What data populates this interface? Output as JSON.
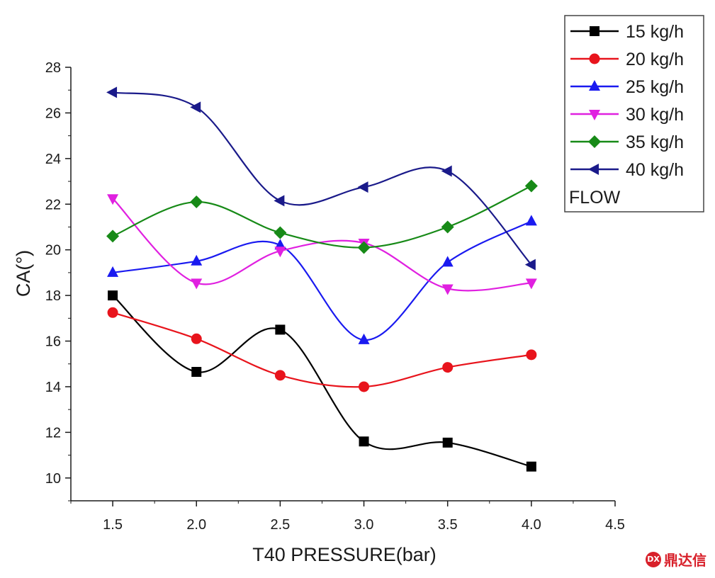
{
  "chart_data": {
    "type": "line",
    "xlabel": "T40 PRESSURE(bar)",
    "ylabel": "CA(°)",
    "xlim": [
      1.25,
      4.5
    ],
    "ylim": [
      9,
      28
    ],
    "xticks": [
      "1.5",
      "2.0",
      "2.5",
      "3.0",
      "3.5",
      "4.0",
      "4.5"
    ],
    "yticks": [
      "10",
      "12",
      "14",
      "16",
      "18",
      "20",
      "22",
      "24",
      "26",
      "28"
    ],
    "x": [
      1.5,
      2.0,
      2.5,
      3.0,
      3.5,
      4.0
    ],
    "legend_title": "FLOW",
    "legend_position": "top-right",
    "grid": false,
    "series": [
      {
        "name": "15 kg/h",
        "color": "#000000",
        "marker": "square",
        "values": [
          18.0,
          14.65,
          16.5,
          11.6,
          11.55,
          10.5
        ]
      },
      {
        "name": "20 kg/h",
        "color": "#e8141c",
        "marker": "circle",
        "values": [
          17.25,
          16.1,
          14.5,
          14.0,
          14.85,
          15.4
        ]
      },
      {
        "name": "25 kg/h",
        "color": "#1a1af0",
        "marker": "triangle-up",
        "values": [
          19.0,
          19.5,
          20.2,
          16.05,
          19.45,
          21.25
        ]
      },
      {
        "name": "30 kg/h",
        "color": "#e020e0",
        "marker": "triangle-down",
        "values": [
          22.25,
          18.55,
          19.95,
          20.3,
          18.3,
          18.55
        ]
      },
      {
        "name": "35 kg/h",
        "color": "#178a17",
        "marker": "diamond",
        "values": [
          20.6,
          22.1,
          20.75,
          20.1,
          21.0,
          22.8
        ]
      },
      {
        "name": "40 kg/h",
        "color": "#1a1a8a",
        "marker": "triangle-left",
        "values": [
          26.9,
          26.25,
          22.15,
          22.75,
          23.45,
          19.35
        ]
      }
    ]
  },
  "watermark": {
    "text": "鼎达信",
    "logo_text": "DX",
    "color": "#d8202a"
  }
}
